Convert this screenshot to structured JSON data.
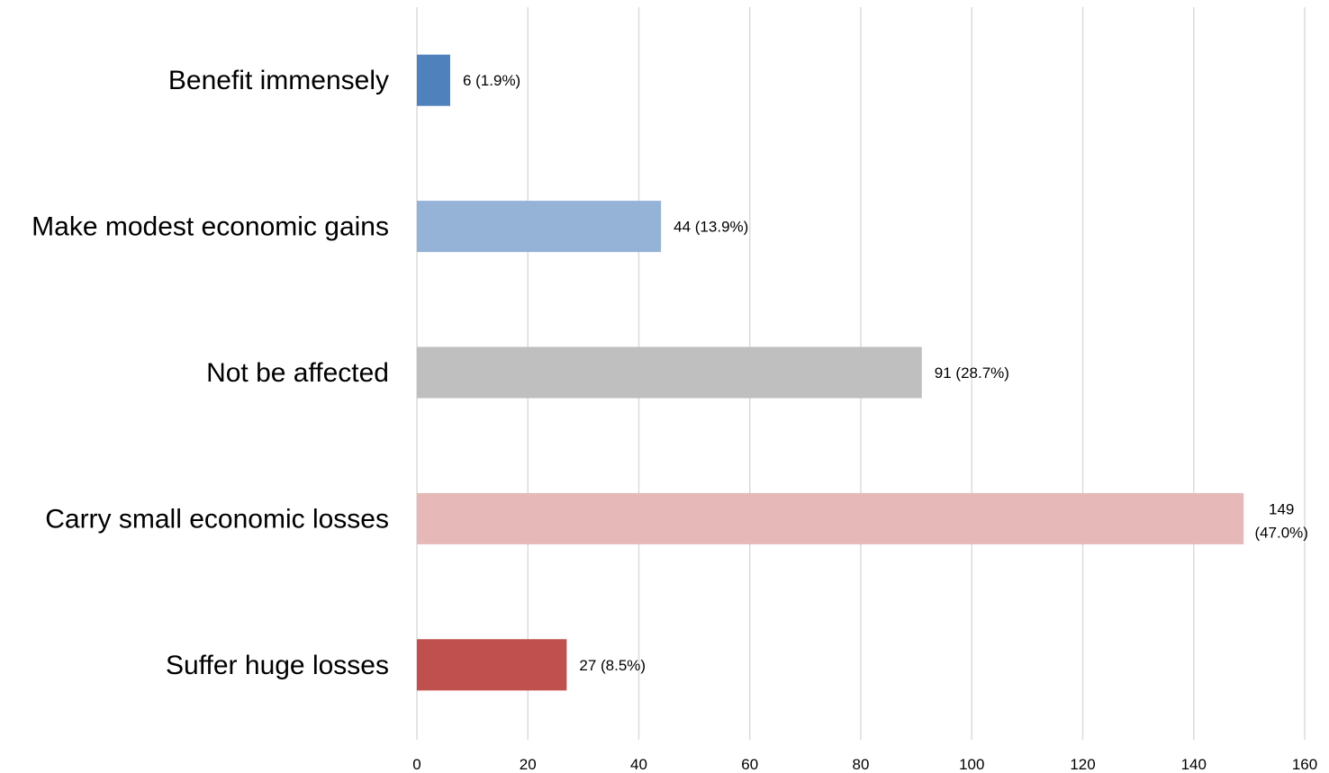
{
  "chart_data": {
    "type": "bar",
    "orientation": "horizontal",
    "categories": [
      "Benefit immensely",
      "Make modest economic gains",
      "Not be affected",
      "Carry small economic losses",
      "Suffer huge losses"
    ],
    "values": [
      6,
      44,
      91,
      149,
      27
    ],
    "data_labels": [
      [
        "6 (1.9%)"
      ],
      [
        "44 (13.9%)"
      ],
      [
        "91 (28.7%)"
      ],
      [
        "149",
        "(47.0%)"
      ],
      [
        "27 (8.5%)"
      ]
    ],
    "colors": [
      "#4f81bd",
      "#95b3d7",
      "#bfbfbf",
      "#e6b9b8",
      "#c0504d"
    ],
    "x_ticks": [
      0,
      20,
      40,
      60,
      80,
      100,
      120,
      140,
      160
    ],
    "xlim": [
      0,
      160
    ],
    "grid": "vertical",
    "legend": "none",
    "title": "",
    "xlabel": "",
    "ylabel": ""
  }
}
